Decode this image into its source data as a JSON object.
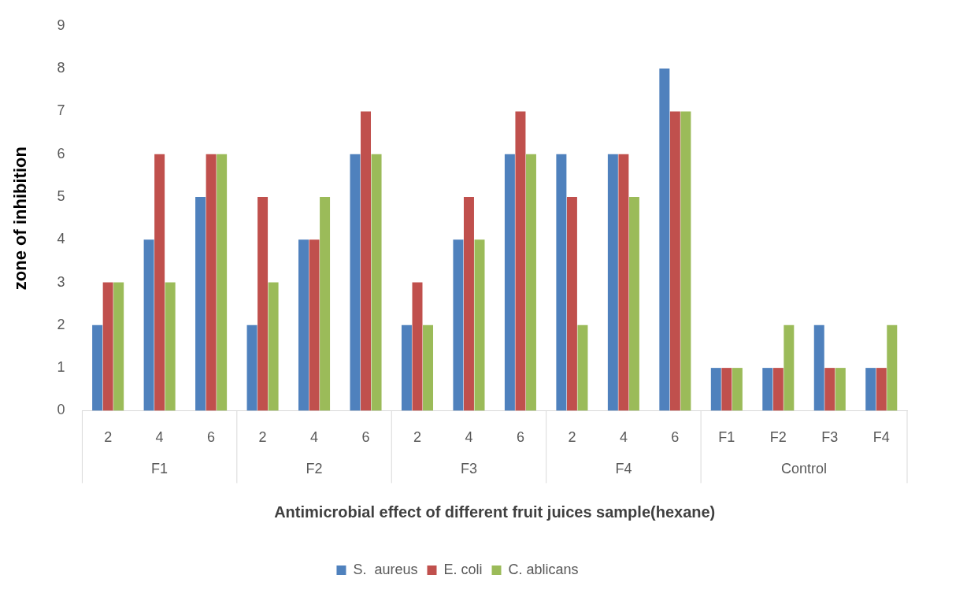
{
  "chart_data": {
    "type": "bar",
    "xlabel": "Antimicrobial effect of different fruit juices sample(hexane)",
    "ylabel": "zone of inhibition",
    "categories": [
      "2",
      "4",
      "6",
      "2",
      "4",
      "6",
      "2",
      "4",
      "6",
      "2",
      "4",
      "6",
      "F1",
      "F2",
      "F3",
      "F4"
    ],
    "series": [
      {
        "name": "S.  aureus",
        "color": "#4f81bd",
        "values": [
          2,
          4,
          5,
          2,
          4,
          6,
          2,
          4,
          6,
          6,
          6,
          8,
          1,
          1,
          2,
          1
        ]
      },
      {
        "name": "E. coli",
        "color": "#c0504d",
        "values": [
          3,
          6,
          6,
          5,
          4,
          7,
          3,
          5,
          7,
          5,
          6,
          7,
          1,
          1,
          1,
          1
        ]
      },
      {
        "name": "C. ablicans",
        "color": "#9bbb59",
        "values": [
          3,
          3,
          6,
          3,
          5,
          6,
          2,
          4,
          6,
          2,
          5,
          7,
          1,
          2,
          1,
          2
        ]
      }
    ],
    "annotations": [
      "F1",
      "F2",
      "F3",
      "F4",
      "Control"
    ],
    "ylim": [
      0,
      9
    ],
    "yticks": [
      0,
      1,
      2,
      3,
      4,
      5,
      6,
      7,
      8,
      9
    ],
    "grid": false,
    "legend": "bottom"
  }
}
